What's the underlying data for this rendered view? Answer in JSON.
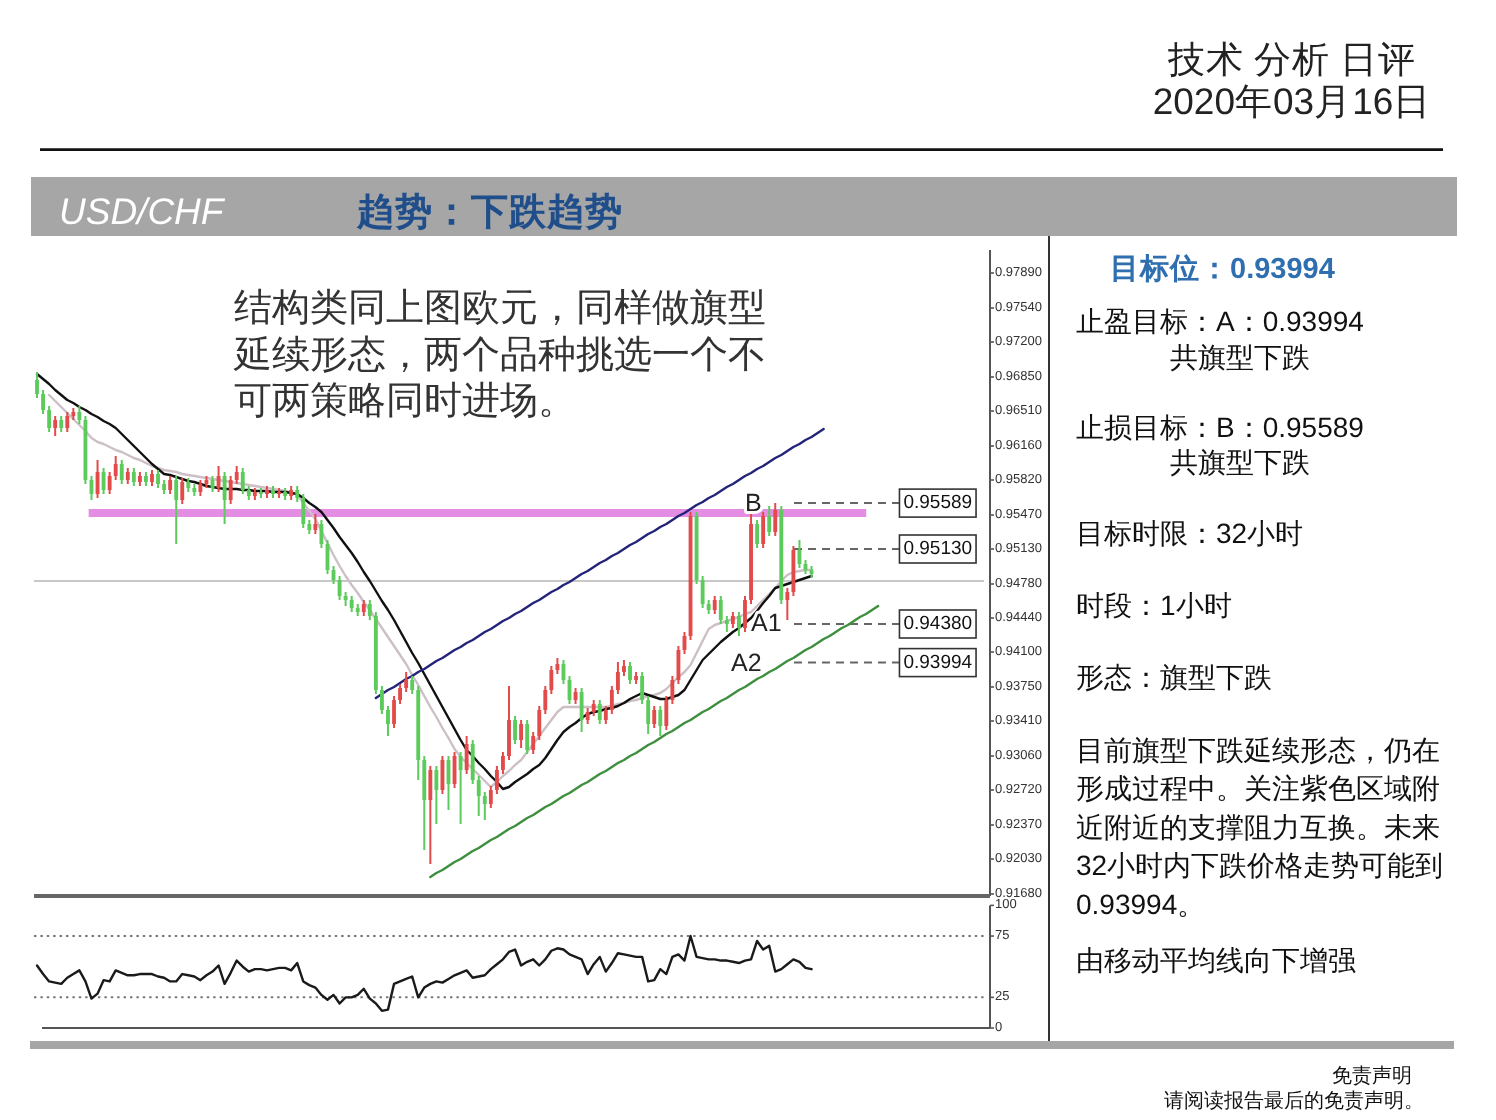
{
  "chart_data": [
    {
      "type": "other",
      "title": "技术 分析 日评",
      "subtitle": "2020年03月16日",
      "annotations": [
        "免责声明",
        "请阅读报告最后的免责声明。"
      ]
    },
    {
      "type": "candlestick",
      "title": "USD/CHF",
      "subtitle": "趋势：下跌趋势",
      "tick_labels": "y",
      "categories": [
        null,
        null,
        null,
        null,
        null,
        null,
        null,
        null,
        null,
        null,
        null,
        null,
        null,
        null,
        null,
        null,
        null,
        null,
        null,
        null,
        null,
        null,
        null,
        null,
        null,
        null,
        null,
        null,
        null,
        null,
        null,
        null,
        null,
        null,
        null,
        null,
        null,
        null,
        null,
        null,
        null,
        null,
        null,
        null,
        null,
        null,
        null,
        null,
        null,
        null,
        null,
        null,
        null,
        null,
        null,
        null,
        null,
        null,
        null,
        null,
        null,
        null,
        null,
        null,
        null,
        null,
        null,
        null,
        null,
        null,
        null,
        null,
        null,
        null,
        null,
        null,
        null,
        null,
        null,
        null,
        null,
        null,
        null,
        null,
        null,
        null,
        null,
        null,
        null,
        null,
        null,
        null,
        null,
        null,
        null,
        null,
        null,
        null,
        null,
        null,
        null,
        null,
        null,
        null,
        null,
        null,
        null,
        null,
        null,
        null,
        null,
        null,
        null,
        null,
        null,
        null,
        null,
        null,
        null,
        null,
        null,
        null,
        null,
        null,
        null,
        null,
        null,
        null,
        null,
        null,
        null,
        null,
        null,
        null,
        null,
        null,
        null,
        null,
        null,
        null,
        null,
        null,
        null,
        null,
        null,
        null,
        null,
        null,
        null,
        null,
        null,
        null,
        null,
        null,
        null,
        null,
        null
      ],
      "ohlc": [
        [
          0.9682,
          0.969,
          0.9664,
          0.9668
        ],
        [
          0.9668,
          0.9672,
          0.9648,
          0.9652
        ],
        [
          0.9652,
          0.9656,
          0.963,
          0.9634
        ],
        [
          0.9634,
          0.9646,
          0.9626,
          0.9642
        ],
        [
          0.9642,
          0.9646,
          0.963,
          0.9634
        ],
        [
          0.9634,
          0.965,
          0.963,
          0.9646
        ],
        [
          0.9646,
          0.9654,
          0.9642,
          0.965
        ],
        [
          0.965,
          0.9656,
          0.9638,
          0.9642
        ],
        [
          0.9642,
          0.9646,
          0.9578,
          0.9582
        ],
        [
          0.9582,
          0.9586,
          0.9562,
          0.9568
        ],
        [
          0.9568,
          0.9602,
          0.9564,
          0.959
        ],
        [
          0.959,
          0.9594,
          0.9568,
          0.9572
        ],
        [
          0.9572,
          0.959,
          0.9568,
          0.9586
        ],
        [
          0.9586,
          0.9606,
          0.9582,
          0.9598
        ],
        [
          0.9598,
          0.9602,
          0.9578,
          0.9582
        ],
        [
          0.9582,
          0.9594,
          0.9578,
          0.959
        ],
        [
          0.959,
          0.9594,
          0.9576,
          0.958
        ],
        [
          0.958,
          0.959,
          0.9576,
          0.9586
        ],
        [
          0.9586,
          0.959,
          0.9576,
          0.958
        ],
        [
          0.958,
          0.9592,
          0.9576,
          0.9588
        ],
        [
          0.9588,
          0.9592,
          0.9574,
          0.9578
        ],
        [
          0.9578,
          0.9582,
          0.9568,
          0.9572
        ],
        [
          0.9572,
          0.9586,
          0.9568,
          0.9582
        ],
        [
          0.9582,
          0.9586,
          0.9518,
          0.9562
        ],
        [
          0.9562,
          0.9584,
          0.9558,
          0.958
        ],
        [
          0.958,
          0.9584,
          0.957,
          0.9574
        ],
        [
          0.9574,
          0.9578,
          0.9566,
          0.957
        ],
        [
          0.957,
          0.9582,
          0.9566,
          0.9578
        ],
        [
          0.9578,
          0.9586,
          0.9574,
          0.9582
        ],
        [
          0.9582,
          0.9586,
          0.957,
          0.9574
        ],
        [
          0.9574,
          0.9596,
          0.957,
          0.9586
        ],
        [
          0.9586,
          0.959,
          0.9538,
          0.9562
        ],
        [
          0.9562,
          0.9586,
          0.9558,
          0.9582
        ],
        [
          0.9582,
          0.9596,
          0.9578,
          0.959
        ],
        [
          0.959,
          0.9594,
          0.9568,
          0.9572
        ],
        [
          0.9572,
          0.9576,
          0.9562,
          0.9566
        ],
        [
          0.9566,
          0.9574,
          0.9562,
          0.957
        ],
        [
          0.957,
          0.9574,
          0.9564,
          0.9568
        ],
        [
          0.9568,
          0.9576,
          0.9564,
          0.9572
        ],
        [
          0.9572,
          0.9576,
          0.9564,
          0.9568
        ],
        [
          0.9568,
          0.9574,
          0.9564,
          0.957
        ],
        [
          0.957,
          0.9574,
          0.9562,
          0.9566
        ],
        [
          0.9566,
          0.9576,
          0.9562,
          0.9572
        ],
        [
          0.9572,
          0.9576,
          0.956,
          0.9564
        ],
        [
          0.9564,
          0.9568,
          0.9534,
          0.9538
        ],
        [
          0.9538,
          0.9542,
          0.9528,
          0.9532
        ],
        [
          0.9532,
          0.9548,
          0.9528,
          0.9538
        ],
        [
          0.9538,
          0.9542,
          0.9514,
          0.9518
        ],
        [
          0.9518,
          0.9522,
          0.9488,
          0.9492
        ],
        [
          0.9492,
          0.9496,
          0.9478,
          0.9482
        ],
        [
          0.9482,
          0.9486,
          0.9462,
          0.9466
        ],
        [
          0.9466,
          0.947,
          0.9456,
          0.9462
        ],
        [
          0.9462,
          0.9466,
          0.945,
          0.9454
        ],
        [
          0.9454,
          0.9458,
          0.9446,
          0.945
        ],
        [
          0.945,
          0.9462,
          0.9446,
          0.9458
        ],
        [
          0.9458,
          0.9462,
          0.9442,
          0.9446
        ],
        [
          0.9446,
          0.945,
          0.9368,
          0.9372
        ],
        [
          0.9372,
          0.9376,
          0.9348,
          0.9352
        ],
        [
          0.9352,
          0.9356,
          0.9326,
          0.9338
        ],
        [
          0.9338,
          0.9366,
          0.9334,
          0.9362
        ],
        [
          0.9362,
          0.9378,
          0.9358,
          0.9374
        ],
        [
          0.9374,
          0.939,
          0.937,
          0.9382
        ],
        [
          0.9382,
          0.9386,
          0.9368,
          0.9372
        ],
        [
          0.9372,
          0.9376,
          0.9282,
          0.9302
        ],
        [
          0.9302,
          0.9306,
          0.9212,
          0.9262
        ],
        [
          0.9262,
          0.9296,
          0.9198,
          0.9292
        ],
        [
          0.9292,
          0.9296,
          0.9238,
          0.9272
        ],
        [
          0.9272,
          0.9306,
          0.9268,
          0.9302
        ],
        [
          0.9302,
          0.9306,
          0.9252,
          0.9278
        ],
        [
          0.9278,
          0.931,
          0.9274,
          0.9306
        ],
        [
          0.9306,
          0.931,
          0.9238,
          0.9292
        ],
        [
          0.9292,
          0.9326,
          0.9288,
          0.9318
        ],
        [
          0.9318,
          0.9322,
          0.9278,
          0.9282
        ],
        [
          0.9282,
          0.9286,
          0.9246,
          0.9266
        ],
        [
          0.9266,
          0.927,
          0.9242,
          0.9258
        ],
        [
          0.9258,
          0.9276,
          0.9254,
          0.9272
        ],
        [
          0.9272,
          0.9296,
          0.9268,
          0.9292
        ],
        [
          0.9292,
          0.931,
          0.9288,
          0.9306
        ],
        [
          0.9306,
          0.9376,
          0.9302,
          0.9342
        ],
        [
          0.9342,
          0.9346,
          0.9318,
          0.9322
        ],
        [
          0.9322,
          0.9342,
          0.9314,
          0.9338
        ],
        [
          0.9338,
          0.9342,
          0.9308,
          0.9312
        ],
        [
          0.9312,
          0.933,
          0.9308,
          0.9326
        ],
        [
          0.9326,
          0.9356,
          0.9322,
          0.9352
        ],
        [
          0.9352,
          0.9376,
          0.9348,
          0.9372
        ],
        [
          0.9372,
          0.9396,
          0.9368,
          0.9392
        ],
        [
          0.9392,
          0.9404,
          0.9388,
          0.9398
        ],
        [
          0.9398,
          0.9402,
          0.9378,
          0.9382
        ],
        [
          0.9382,
          0.9386,
          0.9358,
          0.9362
        ],
        [
          0.9362,
          0.9374,
          0.9358,
          0.937
        ],
        [
          0.937,
          0.9374,
          0.933,
          0.9342
        ],
        [
          0.9342,
          0.9354,
          0.9338,
          0.935
        ],
        [
          0.935,
          0.9362,
          0.9346,
          0.9358
        ],
        [
          0.9358,
          0.9362,
          0.9338,
          0.9342
        ],
        [
          0.9342,
          0.9356,
          0.9338,
          0.9352
        ],
        [
          0.9352,
          0.9376,
          0.9348,
          0.9372
        ],
        [
          0.9372,
          0.94,
          0.9368,
          0.939
        ],
        [
          0.939,
          0.9402,
          0.9386,
          0.9396
        ],
        [
          0.9396,
          0.94,
          0.9378,
          0.9382
        ],
        [
          0.9382,
          0.939,
          0.9378,
          0.9386
        ],
        [
          0.9386,
          0.939,
          0.9358,
          0.9362
        ],
        [
          0.9362,
          0.9366,
          0.9328,
          0.9338
        ],
        [
          0.9338,
          0.9356,
          0.9334,
          0.9352
        ],
        [
          0.9352,
          0.9356,
          0.9326,
          0.9336
        ],
        [
          0.9336,
          0.9366,
          0.9332,
          0.9362
        ],
        [
          0.9362,
          0.9386,
          0.9358,
          0.9382
        ],
        [
          0.9382,
          0.9416,
          0.9378,
          0.9412
        ],
        [
          0.9412,
          0.943,
          0.9408,
          0.9426
        ],
        [
          0.9426,
          0.955,
          0.9422,
          0.9546
        ],
        [
          0.9546,
          0.955,
          0.9478,
          0.9482
        ],
        [
          0.9482,
          0.9486,
          0.9454,
          0.9458
        ],
        [
          0.9458,
          0.9462,
          0.9448,
          0.9452
        ],
        [
          0.9452,
          0.9466,
          0.9448,
          0.9462
        ],
        [
          0.9462,
          0.9466,
          0.9438,
          0.9442
        ],
        [
          0.9442,
          0.9446,
          0.943,
          0.9438
        ],
        [
          0.9438,
          0.945,
          0.9434,
          0.9446
        ],
        [
          0.9446,
          0.945,
          0.9426,
          0.9434
        ],
        [
          0.9434,
          0.9466,
          0.943,
          0.9462
        ],
        [
          0.9462,
          0.955,
          0.9458,
          0.9538
        ],
        [
          0.9538,
          0.9542,
          0.9514,
          0.9518
        ],
        [
          0.9518,
          0.955,
          0.9514,
          0.9546
        ],
        [
          0.9546,
          0.9556,
          0.9526,
          0.953
        ],
        [
          0.953,
          0.9559,
          0.9526,
          0.9552
        ],
        [
          0.9552,
          0.9556,
          0.9458,
          0.9462
        ],
        [
          0.9462,
          0.9474,
          0.9442,
          0.947
        ],
        [
          0.947,
          0.9516,
          0.9466,
          0.9512
        ],
        [
          0.9512,
          0.9522,
          0.9494,
          0.9498
        ],
        [
          0.9498,
          0.9502,
          0.9488,
          0.9492
        ],
        [
          0.9492,
          0.9496,
          0.9484,
          0.9488
        ],
        null,
        null,
        null,
        null,
        null,
        null,
        null,
        null,
        null,
        null,
        null,
        null,
        null,
        null,
        null,
        null,
        null,
        null,
        null,
        null,
        null,
        null,
        null,
        null,
        null,
        null,
        null,
        null
      ],
      "colors": [
        "#5ccb5c",
        "#5ccb5c",
        "#5ccb5c",
        "#e34b4b",
        "#5ccb5c",
        "#e34b4b",
        "#e34b4b",
        "#5ccb5c",
        "#5ccb5c",
        "#5ccb5c",
        "#e34b4b",
        "#5ccb5c",
        "#e34b4b",
        "#e34b4b",
        "#5ccb5c",
        "#e34b4b",
        "#5ccb5c",
        "#e34b4b",
        "#5ccb5c",
        "#e34b4b",
        "#5ccb5c",
        "#5ccb5c",
        "#e34b4b",
        "#5ccb5c",
        "#e34b4b",
        "#5ccb5c",
        "#5ccb5c",
        "#e34b4b",
        "#e34b4b",
        "#5ccb5c",
        "#e34b4b",
        "#5ccb5c",
        "#e34b4b",
        "#e34b4b",
        "#5ccb5c",
        "#5ccb5c",
        "#e34b4b",
        "#5ccb5c",
        "#e34b4b",
        "#5ccb5c",
        "#e34b4b",
        "#5ccb5c",
        "#e34b4b",
        "#5ccb5c",
        "#5ccb5c",
        "#5ccb5c",
        "#e34b4b",
        "#5ccb5c",
        "#5ccb5c",
        "#5ccb5c",
        "#5ccb5c",
        "#5ccb5c",
        "#5ccb5c",
        "#5ccb5c",
        "#e34b4b",
        "#5ccb5c",
        "#5ccb5c",
        "#5ccb5c",
        "#5ccb5c",
        "#e34b4b",
        "#e34b4b",
        "#e34b4b",
        "#5ccb5c",
        "#5ccb5c",
        "#5ccb5c",
        "#e34b4b",
        "#5ccb5c",
        "#e34b4b",
        "#5ccb5c",
        "#e34b4b",
        "#5ccb5c",
        "#e34b4b",
        "#5ccb5c",
        "#5ccb5c",
        "#5ccb5c",
        "#e34b4b",
        "#e34b4b",
        "#e34b4b",
        "#e34b4b",
        "#5ccb5c",
        "#e34b4b",
        "#5ccb5c",
        "#e34b4b",
        "#e34b4b",
        "#e34b4b",
        "#e34b4b",
        "#e34b4b",
        "#5ccb5c",
        "#5ccb5c",
        "#e34b4b",
        "#5ccb5c",
        "#e34b4b",
        "#e34b4b",
        "#5ccb5c",
        "#e34b4b",
        "#e34b4b",
        "#e34b4b",
        "#e34b4b",
        "#5ccb5c",
        "#e34b4b",
        "#5ccb5c",
        "#5ccb5c",
        "#e34b4b",
        "#5ccb5c",
        "#e34b4b",
        "#e34b4b",
        "#e34b4b",
        "#e34b4b",
        "#e34b4b",
        "#5ccb5c",
        "#5ccb5c",
        "#5ccb5c",
        "#e34b4b",
        "#5ccb5c",
        "#5ccb5c",
        "#e34b4b",
        "#5ccb5c",
        "#e34b4b",
        "#e34b4b",
        "#5ccb5c",
        "#e34b4b",
        "#5ccb5c",
        "#e34b4b",
        "#5ccb5c",
        "#e34b4b",
        "#e34b4b",
        "#5ccb5c",
        "#5ccb5c",
        "#5ccb5c",
        null,
        null,
        null,
        null,
        null,
        null,
        null,
        null,
        null,
        null,
        null,
        null,
        null,
        null,
        null,
        null,
        null,
        null,
        null,
        null,
        null,
        null,
        null,
        null,
        null,
        null,
        null,
        null
      ],
      "ylim": [
        0.9166,
        0.9812
      ],
      "yticks": [
        {
          "value": 0.9789,
          "label": "0.97890"
        },
        {
          "value": 0.9754,
          "label": "0.97540"
        },
        {
          "value": 0.972,
          "label": "0.97200"
        },
        {
          "value": 0.9685,
          "label": "0.96850"
        },
        {
          "value": 0.9651,
          "label": "0.96510"
        },
        {
          "value": 0.9616,
          "label": "0.96160"
        },
        {
          "value": 0.9582,
          "label": "0.95820"
        },
        {
          "value": 0.9547,
          "label": "0.95470"
        },
        {
          "value": 0.9513,
          "label": "0.95130"
        },
        {
          "value": 0.9478,
          "label": "0.94780"
        },
        {
          "value": 0.9444,
          "label": "0.94440"
        },
        {
          "value": 0.941,
          "label": "0.94100"
        },
        {
          "value": 0.9375,
          "label": "0.93750"
        },
        {
          "value": 0.9341,
          "label": "0.93410"
        },
        {
          "value": 0.9306,
          "label": "0.93060"
        },
        {
          "value": 0.9272,
          "label": "0.92720"
        },
        {
          "value": 0.9237,
          "label": "0.92370"
        },
        {
          "value": 0.9203,
          "label": "0.92030"
        },
        {
          "value": 0.9168,
          "label": "0.91680"
        }
      ],
      "bands": [
        {
          "axis": "y",
          "from": 0.9545,
          "to": 0.9553,
          "color": "#e38de3"
        }
      ],
      "series": [
        {
          "type": "line",
          "color": "#cdbfc6",
          "values": [
            null,
            null,
            0.9667,
            0.9661,
            0.9655,
            0.9649,
            0.9643,
            0.9637,
            0.9631,
            0.9624,
            0.962,
            0.9618,
            0.9615,
            0.9612,
            0.961,
            0.9607,
            0.9604,
            0.9602,
            0.9599,
            0.9596,
            0.9594,
            0.9592,
            0.9591,
            0.959,
            0.9588,
            0.9587,
            0.9586,
            0.9585,
            0.9584,
            0.9583,
            0.9582,
            0.9581,
            0.958,
            0.9579,
            0.9578,
            0.9577,
            0.9576,
            0.9575,
            0.9574,
            0.9573,
            0.9572,
            0.9571,
            0.957,
            0.9567,
            0.9559,
            0.9551,
            0.9543,
            0.9531,
            0.9519,
            0.9507,
            0.9496,
            0.9486,
            0.9477,
            0.9469,
            0.946,
            0.9452,
            0.9443,
            0.9434,
            0.9425,
            0.9416,
            0.9407,
            0.9398,
            0.9387,
            0.9377,
            0.9366,
            0.9355,
            0.9345,
            0.9334,
            0.9324,
            0.9313,
            0.9305,
            0.9299,
            0.9293,
            0.9287,
            0.9281,
            0.9275,
            0.928,
            0.9286,
            0.9291,
            0.9297,
            0.9302,
            0.931,
            0.9318,
            0.9326,
            0.9334,
            0.9342,
            0.935,
            0.9355,
            0.9355,
            0.9355,
            0.9355,
            0.9355,
            0.9355,
            0.9355,
            0.9355,
            0.9356,
            0.9358,
            0.9359,
            0.9361,
            0.9362,
            0.9364,
            0.9366,
            0.9367,
            0.9369,
            0.9373,
            0.9379,
            0.9385,
            0.939,
            0.9397,
            0.9409,
            0.9421,
            0.9433,
            0.9437,
            0.9439,
            0.9441,
            0.9443,
            0.9445,
            0.9448,
            0.945,
            0.9456,
            0.9462,
            0.9468,
            0.9474,
            0.9481,
            0.9487,
            0.949,
            0.9491,
            0.9492,
            0.9492,
            null,
            null,
            null,
            null,
            null,
            null,
            null,
            null,
            null,
            null,
            null,
            null,
            null,
            null,
            null,
            null,
            null,
            null,
            null,
            null,
            null,
            null,
            null,
            null,
            null,
            null,
            null,
            null
          ]
        },
        {
          "type": "line",
          "color": "#111111",
          "values": [
            0.9688,
            0.9683,
            0.9678,
            0.9672,
            0.9667,
            0.9662,
            0.9659,
            0.9655,
            0.9652,
            0.9648,
            0.9645,
            0.9641,
            0.9638,
            0.9634,
            0.9628,
            0.9622,
            0.9616,
            0.961,
            0.9604,
            0.9598,
            0.9593,
            0.9588,
            0.9587,
            0.9585,
            0.9583,
            0.9581,
            0.958,
            0.9578,
            0.9576,
            0.9575,
            0.9574,
            0.9573,
            0.9573,
            0.9573,
            0.9572,
            0.9572,
            0.9571,
            0.9571,
            0.9571,
            0.957,
            0.957,
            0.957,
            0.9569,
            0.9568,
            0.9564,
            0.9559,
            0.9555,
            0.955,
            0.9542,
            0.9534,
            0.9525,
            0.9517,
            0.9509,
            0.95,
            0.949,
            0.9481,
            0.9471,
            0.9461,
            0.9452,
            0.9442,
            0.9431,
            0.942,
            0.9409,
            0.9399,
            0.9388,
            0.9377,
            0.9366,
            0.9355,
            0.9344,
            0.9333,
            0.9322,
            0.9312,
            0.9306,
            0.9299,
            0.9293,
            0.9286,
            0.928,
            0.9273,
            0.9275,
            0.928,
            0.9284,
            0.9288,
            0.9293,
            0.9297,
            0.9304,
            0.9313,
            0.9322,
            0.933,
            0.9335,
            0.9339,
            0.9344,
            0.9348,
            0.935,
            0.9351,
            0.9353,
            0.9354,
            0.9356,
            0.9359,
            0.9363,
            0.9366,
            0.9369,
            0.9367,
            0.9365,
            0.9363,
            0.9363,
            0.9365,
            0.9367,
            0.9372,
            0.9382,
            0.9392,
            0.9402,
            0.9408,
            0.9414,
            0.942,
            0.9425,
            0.943,
            0.9434,
            0.9439,
            0.9444,
            0.9451,
            0.9459,
            0.9466,
            0.9474,
            0.9476,
            0.9478,
            0.948,
            0.9482,
            0.9484,
            0.9486,
            null,
            null,
            null,
            null,
            null,
            null,
            null,
            null,
            null,
            null,
            null,
            null,
            null,
            null,
            null,
            null,
            null,
            null,
            null,
            null,
            null,
            null,
            null,
            null,
            null,
            null,
            null,
            null
          ]
        },
        {
          "type": "line",
          "color": "#23237a",
          "values": [
            null,
            null,
            null,
            null,
            null,
            null,
            null,
            null,
            null,
            null,
            null,
            null,
            null,
            null,
            null,
            null,
            null,
            null,
            null,
            null,
            null,
            null,
            null,
            null,
            null,
            null,
            null,
            null,
            null,
            null,
            null,
            null,
            null,
            null,
            null,
            null,
            null,
            null,
            null,
            null,
            null,
            null,
            null,
            null,
            null,
            null,
            null,
            null,
            null,
            null,
            null,
            null,
            null,
            null,
            null,
            null,
            0.9364,
            0.9368,
            0.9372,
            0.9375,
            0.9379,
            0.9383,
            0.9386,
            0.939,
            0.9393,
            0.9397,
            0.9401,
            0.9404,
            0.9408,
            0.9412,
            0.9415,
            0.9419,
            0.9422,
            0.9426,
            0.943,
            0.9433,
            0.9437,
            0.9441,
            0.9444,
            0.9448,
            0.9451,
            0.9455,
            0.9459,
            0.9462,
            0.9466,
            0.947,
            0.9473,
            0.9477,
            0.948,
            0.9484,
            0.9488,
            0.9491,
            0.9495,
            0.9499,
            0.9502,
            0.9506,
            0.9509,
            0.9513,
            0.9517,
            0.952,
            0.9524,
            0.9528,
            0.9531,
            0.9535,
            0.9538,
            0.9542,
            0.9546,
            0.9549,
            0.9553,
            0.9557,
            0.956,
            0.9564,
            0.9567,
            0.9571,
            0.9575,
            0.9578,
            0.9582,
            0.9586,
            0.9589,
            0.9593,
            0.9596,
            0.96,
            0.9604,
            0.9607,
            0.9611,
            0.9615,
            0.9618,
            0.9622,
            0.9625,
            0.9629,
            0.9633,
            null,
            null,
            null,
            null,
            null,
            null,
            null,
            null,
            null,
            null,
            null,
            null,
            null,
            null,
            null,
            null,
            null,
            null,
            null,
            null,
            null,
            null,
            null,
            null,
            null,
            null
          ]
        },
        {
          "type": "line",
          "color": "#3d8f3d",
          "values": [
            null,
            null,
            null,
            null,
            null,
            null,
            null,
            null,
            null,
            null,
            null,
            null,
            null,
            null,
            null,
            null,
            null,
            null,
            null,
            null,
            null,
            null,
            null,
            null,
            null,
            null,
            null,
            null,
            null,
            null,
            null,
            null,
            null,
            null,
            null,
            null,
            null,
            null,
            null,
            null,
            null,
            null,
            null,
            null,
            null,
            null,
            null,
            null,
            null,
            null,
            null,
            null,
            null,
            null,
            null,
            null,
            null,
            null,
            null,
            null,
            null,
            null,
            null,
            null,
            null,
            0.9185,
            0.9189,
            0.9192,
            0.9196,
            0.92,
            0.9203,
            0.9207,
            0.9211,
            0.9214,
            0.9218,
            0.9222,
            0.9225,
            0.9229,
            0.9233,
            0.9236,
            0.924,
            0.9244,
            0.9247,
            0.9251,
            0.9255,
            0.9258,
            0.9262,
            0.9266,
            0.9269,
            0.9273,
            0.9277,
            0.928,
            0.9284,
            0.9288,
            0.9291,
            0.9295,
            0.9299,
            0.9302,
            0.9306,
            0.9309,
            0.9313,
            0.9317,
            0.932,
            0.9324,
            0.9328,
            0.9331,
            0.9335,
            0.9339,
            0.9342,
            0.9346,
            0.935,
            0.9353,
            0.9357,
            0.9361,
            0.9364,
            0.9368,
            0.9372,
            0.9375,
            0.9379,
            0.9383,
            0.9386,
            0.939,
            0.9393,
            0.9397,
            0.9401,
            0.9404,
            0.9408,
            0.9412,
            0.9415,
            0.9419,
            0.9423,
            0.9426,
            0.943,
            0.9434,
            0.9437,
            0.9441,
            0.9445,
            0.9448,
            0.9452,
            0.9456,
            null,
            null,
            null,
            null,
            null,
            null,
            null,
            null,
            null,
            null,
            null,
            null,
            null,
            null,
            null,
            null,
            null
          ]
        }
      ],
      "ref_lines": [
        {
          "axis": "y",
          "value": 0.9481,
          "color": "#c8c8c8"
        },
        {
          "axis": "y",
          "value": 0.95589,
          "label": "0.95589",
          "line_style": "dashed",
          "color": "#666666"
        },
        {
          "axis": "y",
          "value": 0.9513,
          "label": "0.95130",
          "line_style": "dashed",
          "color": "#666666"
        },
        {
          "axis": "y",
          "value": 0.9438,
          "label": "0.94380",
          "line_style": "dashed",
          "color": "#666666"
        },
        {
          "axis": "y",
          "value": 0.93994,
          "label": "0.93994",
          "line_style": "dashed",
          "color": "#666666"
        }
      ],
      "annotations": [
        "结构类同上图欧元，同样做旗型延续形态，两个品种挑选一个不可两策略同时进场。",
        {
          "text": "B",
          "y": 0.95589
        },
        "A1",
        "A2"
      ]
    },
    {
      "type": "line",
      "ylim": [
        0,
        100
      ],
      "yticks": [
        0,
        25,
        75,
        100
      ],
      "tick_labels": "y",
      "categories": [
        null,
        null,
        null,
        null,
        null,
        null,
        null,
        null,
        null,
        null,
        null,
        null,
        null,
        null,
        null,
        null,
        null,
        null,
        null,
        null,
        null,
        null,
        null,
        null,
        null,
        null,
        null,
        null,
        null,
        null,
        null,
        null,
        null,
        null,
        null,
        null,
        null,
        null,
        null,
        null,
        null,
        null,
        null,
        null,
        null,
        null,
        null,
        null,
        null,
        null,
        null,
        null,
        null,
        null,
        null,
        null,
        null,
        null,
        null,
        null,
        null,
        null,
        null,
        null,
        null,
        null,
        null,
        null,
        null,
        null,
        null,
        null,
        null,
        null,
        null,
        null,
        null,
        null,
        null,
        null,
        null,
        null,
        null,
        null,
        null,
        null,
        null,
        null,
        null,
        null,
        null,
        null,
        null,
        null,
        null,
        null,
        null,
        null,
        null,
        null,
        null,
        null,
        null,
        null,
        null,
        null,
        null,
        null,
        null,
        null,
        null,
        null,
        null,
        null,
        null,
        null,
        null,
        null,
        null,
        null,
        null,
        null,
        null,
        null,
        null,
        null,
        null,
        null,
        null,
        null,
        null,
        null,
        null,
        null,
        null,
        null,
        null,
        null,
        null,
        null,
        null,
        null,
        null,
        null,
        null,
        null,
        null,
        null,
        null,
        null,
        null,
        null,
        null,
        null,
        null,
        null,
        null
      ],
      "ref_lines": [
        {
          "axis": "y",
          "value": 75,
          "line_style": "dotted",
          "color": "#777777"
        },
        {
          "axis": "y",
          "value": 25,
          "line_style": "dotted",
          "color": "#777777"
        }
      ],
      "series": [
        {
          "color": "#1a1a1a",
          "values": [
            51,
            44,
            38,
            37,
            36,
            41,
            44,
            47,
            38,
            24,
            28,
            39,
            38,
            47,
            45,
            43,
            43,
            44,
            44,
            44,
            42,
            41,
            38,
            38,
            44,
            43,
            42,
            39,
            43,
            46,
            51,
            36,
            45,
            55,
            50,
            46,
            48,
            48,
            47,
            48,
            49,
            49,
            47,
            53,
            38,
            35,
            33,
            27,
            23,
            27,
            20,
            25,
            25,
            27,
            32,
            24,
            20,
            14,
            15,
            36,
            38,
            40,
            42,
            25,
            33,
            36,
            38,
            37,
            40,
            43,
            45,
            47,
            41,
            42,
            43,
            48,
            52,
            56,
            62,
            64,
            51,
            54,
            56,
            51,
            56,
            63,
            65,
            64,
            60,
            58,
            56,
            44,
            52,
            58,
            46,
            53,
            61,
            60,
            59,
            58,
            58,
            38,
            39,
            48,
            44,
            58,
            60,
            55,
            75,
            58,
            57,
            56,
            56,
            55,
            55,
            54,
            53,
            55,
            56,
            71,
            64,
            67,
            46,
            48,
            52,
            56,
            54,
            49,
            48,
            null,
            null,
            null,
            null,
            null,
            null,
            null,
            null,
            null,
            null,
            null,
            null,
            null,
            null,
            null,
            null,
            null,
            null,
            null,
            null,
            null,
            null,
            null,
            null,
            null,
            null,
            null,
            null
          ]
        }
      ]
    },
    {
      "type": "other",
      "title": "目标位：0.93994",
      "annotations": [
        "止盈目标：A：0.93994",
        "共旗型下跌",
        "止损目标：B：0.95589",
        "共旗型下跌",
        "目标时限：32小时",
        "时段：1小时",
        "形态：旗型下跌",
        "目前旗型下跌延续形态，仍在形成过程中。关注紫色区域附近附近的支撑阻力互换。未来32小时内下跌价格走势可能到0.93994。",
        "由移动平均线向下增强"
      ]
    }
  ]
}
